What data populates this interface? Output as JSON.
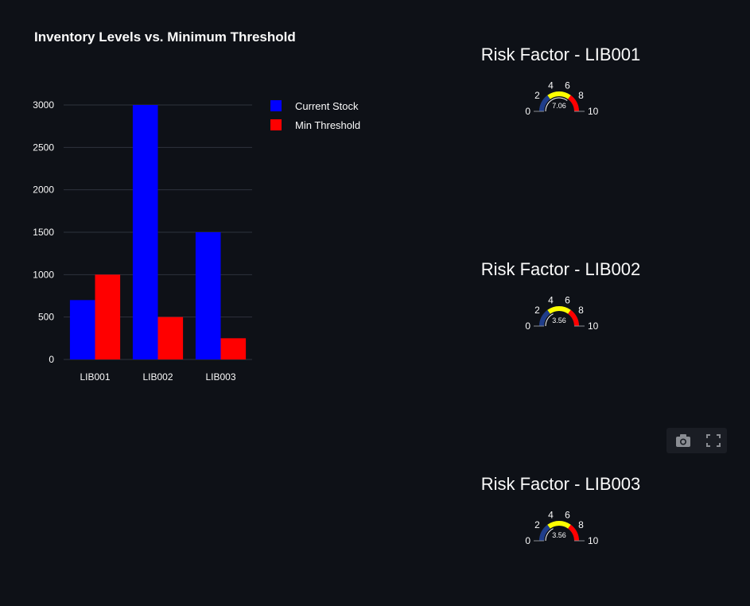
{
  "chart_data": [
    {
      "type": "bar",
      "title": "Inventory Levels vs. Minimum Threshold",
      "categories": [
        "LIB001",
        "LIB002",
        "LIB003"
      ],
      "series": [
        {
          "name": "Current Stock",
          "values": [
            700,
            3000,
            1500
          ],
          "color": "#0000ff"
        },
        {
          "name": "Min Threshold",
          "values": [
            1000,
            500,
            250
          ],
          "color": "#ff0000"
        }
      ],
      "yticks": [
        0,
        500,
        1000,
        1500,
        2000,
        2500,
        3000
      ],
      "ylim": [
        0,
        3000
      ],
      "grid": true,
      "legend_position": "right"
    },
    {
      "type": "gauge",
      "title": "Risk Factor - LIB001",
      "value": 7.06,
      "value_label": "7.06",
      "range": [
        0,
        10
      ],
      "ticks": [
        "0",
        "2",
        "4",
        "6",
        "8",
        "10"
      ],
      "bands": [
        {
          "from": 0,
          "to": 3,
          "color": "#1f3d8a"
        },
        {
          "from": 3,
          "to": 7,
          "color": "#ffff00"
        },
        {
          "from": 7,
          "to": 10,
          "color": "#ff0000"
        }
      ]
    },
    {
      "type": "gauge",
      "title": "Risk Factor - LIB002",
      "value": 3.56,
      "value_label": "3.56",
      "range": [
        0,
        10
      ],
      "ticks": [
        "0",
        "2",
        "4",
        "6",
        "8",
        "10"
      ],
      "bands": [
        {
          "from": 0,
          "to": 3,
          "color": "#1f3d8a"
        },
        {
          "from": 3,
          "to": 7,
          "color": "#ffff00"
        },
        {
          "from": 7,
          "to": 10,
          "color": "#ff0000"
        }
      ]
    },
    {
      "type": "gauge",
      "title": "Risk Factor - LIB003",
      "value": 3.56,
      "value_label": "3.56",
      "range": [
        0,
        10
      ],
      "ticks": [
        "0",
        "2",
        "4",
        "6",
        "8",
        "10"
      ],
      "bands": [
        {
          "from": 0,
          "to": 3,
          "color": "#1f3d8a"
        },
        {
          "from": 3,
          "to": 7,
          "color": "#ffff00"
        },
        {
          "from": 7,
          "to": 10,
          "color": "#ff0000"
        }
      ]
    }
  ],
  "toolbar": {
    "icons": [
      "camera-icon",
      "fullscreen-icon"
    ]
  }
}
